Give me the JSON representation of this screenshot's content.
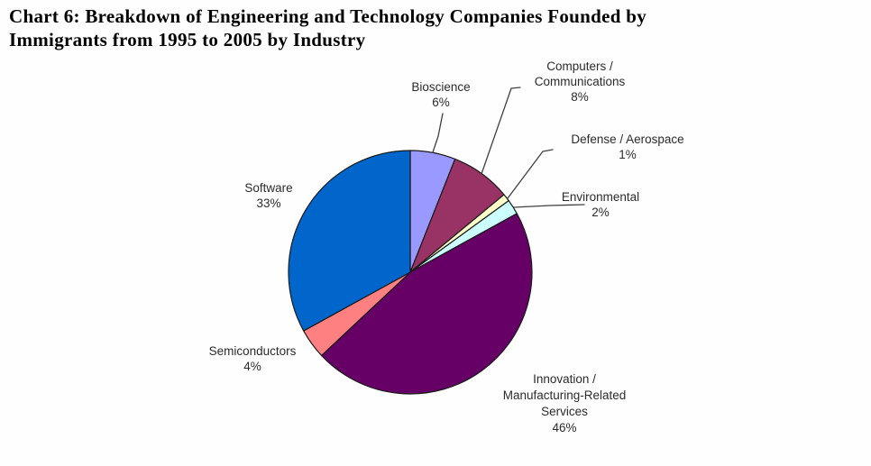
{
  "title": "Chart 6: Breakdown of Engineering and Technology Companies Founded by\nImmigrants from 1995 to 2005 by Industry",
  "chart_data": {
    "type": "pie",
    "title": "Chart 6: Breakdown of Engineering and Technology Companies Founded by Immigrants from 1995 to 2005 by Industry",
    "start_angle_deg": 0,
    "direction": "clockwise",
    "total_pct": 100,
    "stroke_color": "#1a1a1a",
    "leader_line_color": "#404040",
    "slices": [
      {
        "label": "Bioscience",
        "value_pct": 6,
        "color": "#9999FF"
      },
      {
        "label": "Computers / Communications",
        "value_pct": 8,
        "color": "#993366"
      },
      {
        "label": "Defense / Aerospace",
        "value_pct": 1,
        "color": "#FFFFCC"
      },
      {
        "label": "Environmental",
        "value_pct": 2,
        "color": "#CCFFFF"
      },
      {
        "label": "Innovation / Manufacturing-Related Services",
        "value_pct": 46,
        "color": "#660066"
      },
      {
        "label": "Semiconductors",
        "value_pct": 4,
        "color": "#FF8080"
      },
      {
        "label": "Software",
        "value_pct": 33,
        "color": "#0066CC"
      }
    ],
    "labels_display": {
      "bioscience": "Bioscience\n6%",
      "computers": "Computers /\nCommunications\n8%",
      "defense": "Defense / Aerospace\n1%",
      "environmental": "Environmental\n2%",
      "innovation": "Innovation /\nManufacturing-Related\nServices\n46%",
      "semiconductors": "Semiconductors\n4%",
      "software": "Software\n33%"
    }
  }
}
